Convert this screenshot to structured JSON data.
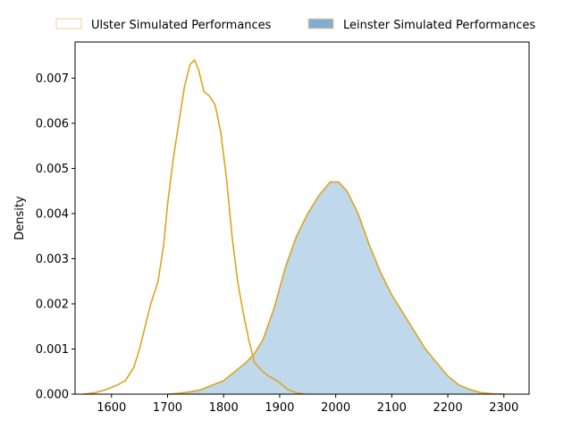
{
  "chart_data": {
    "type": "area",
    "title": "",
    "xlabel": "",
    "ylabel": "Density",
    "xlim": [
      1535,
      2345
    ],
    "ylim": [
      0,
      0.0078
    ],
    "x_ticks": [
      1600,
      1700,
      1800,
      1900,
      2000,
      2100,
      2200,
      2300
    ],
    "y_ticks": [
      0.0,
      0.001,
      0.002,
      0.003,
      0.004,
      0.005,
      0.006,
      0.007
    ],
    "y_tick_labels": [
      "0.000",
      "0.001",
      "0.002",
      "0.003",
      "0.004",
      "0.005",
      "0.006",
      "0.007"
    ],
    "grid": false,
    "legend_position": "top",
    "series": [
      {
        "name": "Ulster Simulated Performances",
        "fill": false,
        "line_color": "#daa520",
        "legend_face": "#ffffff",
        "legend_edge": "#f0d090",
        "points": [
          [
            1550,
            0.0
          ],
          [
            1570,
            3e-05
          ],
          [
            1590,
            0.0001
          ],
          [
            1610,
            0.0002
          ],
          [
            1625,
            0.0003
          ],
          [
            1640,
            0.0006
          ],
          [
            1650,
            0.001
          ],
          [
            1660,
            0.0015
          ],
          [
            1670,
            0.002
          ],
          [
            1683,
            0.0025
          ],
          [
            1693,
            0.0033
          ],
          [
            1700,
            0.0042
          ],
          [
            1710,
            0.0052
          ],
          [
            1720,
            0.006
          ],
          [
            1730,
            0.0068
          ],
          [
            1740,
            0.0073
          ],
          [
            1748,
            0.0074
          ],
          [
            1755,
            0.0072
          ],
          [
            1765,
            0.0067
          ],
          [
            1775,
            0.0066
          ],
          [
            1785,
            0.0064
          ],
          [
            1795,
            0.0058
          ],
          [
            1805,
            0.0048
          ],
          [
            1815,
            0.0035
          ],
          [
            1825,
            0.0025
          ],
          [
            1835,
            0.0018
          ],
          [
            1845,
            0.0012
          ],
          [
            1855,
            0.0007
          ],
          [
            1870,
            0.0005
          ],
          [
            1880,
            0.0004
          ],
          [
            1895,
            0.0003
          ],
          [
            1905,
            0.0002
          ],
          [
            1915,
            0.0001
          ],
          [
            1930,
            3e-05
          ],
          [
            1945,
            0.0
          ]
        ]
      },
      {
        "name": "Leinster Simulated Performances",
        "fill": true,
        "fill_color": "#c0d8ec",
        "line_color": "#daa520",
        "legend_face": "#82add3",
        "legend_edge": "#f0d090",
        "points": [
          [
            1700,
            0.0
          ],
          [
            1720,
            2e-05
          ],
          [
            1740,
            5e-05
          ],
          [
            1760,
            0.0001
          ],
          [
            1780,
            0.0002
          ],
          [
            1800,
            0.0003
          ],
          [
            1820,
            0.0005
          ],
          [
            1840,
            0.0007
          ],
          [
            1855,
            0.0009
          ],
          [
            1870,
            0.0012
          ],
          [
            1890,
            0.0019
          ],
          [
            1910,
            0.0028
          ],
          [
            1930,
            0.0035
          ],
          [
            1950,
            0.004
          ],
          [
            1970,
            0.0044
          ],
          [
            1990,
            0.0047
          ],
          [
            2005,
            0.0047
          ],
          [
            2020,
            0.0045
          ],
          [
            2040,
            0.004
          ],
          [
            2060,
            0.0033
          ],
          [
            2080,
            0.0027
          ],
          [
            2100,
            0.0022
          ],
          [
            2120,
            0.0018
          ],
          [
            2140,
            0.0014
          ],
          [
            2160,
            0.001
          ],
          [
            2180,
            0.0007
          ],
          [
            2200,
            0.0004
          ],
          [
            2220,
            0.0002
          ],
          [
            2240,
            0.0001
          ],
          [
            2260,
            3e-05
          ],
          [
            2280,
            1e-05
          ],
          [
            2300,
            0.0
          ]
        ]
      }
    ]
  }
}
